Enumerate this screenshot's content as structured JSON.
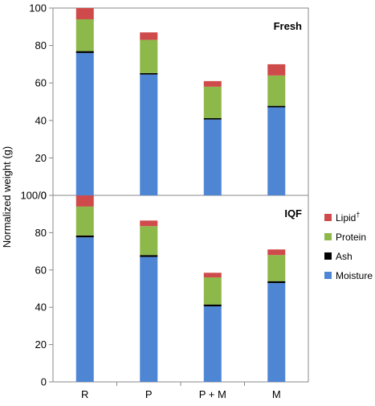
{
  "chart_data": {
    "type": "bar",
    "stacked": true,
    "ylabel": "Normalized weight (g)",
    "categories": [
      "R",
      "P",
      "P + M",
      "M"
    ],
    "stack_order": [
      "Moisture",
      "Ash",
      "Protein",
      "Lipid†"
    ],
    "colors": {
      "Moisture": "#4f86d4",
      "Ash": "#000000",
      "Protein": "#8db84a",
      "Lipid†": "#cf4b4b"
    },
    "legend": {
      "placement": "right",
      "order": [
        "Lipid†",
        "Protein",
        "Ash",
        "Moisture"
      ],
      "labels": {
        "Lipid": "Lipid",
        "dagger": "†",
        "Protein": "Protein",
        "Ash": "Ash",
        "Moisture": "Moisture"
      }
    },
    "grid": false,
    "panels": [
      {
        "label": "Fresh",
        "ylim": [
          0,
          100
        ],
        "yticks": [
          "0",
          "20",
          "40",
          "60",
          "80"
        ],
        "top_tick": "100",
        "series": [
          {
            "name": "Moisture",
            "values": [
              76,
              64.5,
              40.5,
              47
            ]
          },
          {
            "name": "Ash",
            "values": [
              1,
              0.8,
              0.7,
              0.8
            ]
          },
          {
            "name": "Protein",
            "values": [
              17,
              17.7,
              16.8,
              16.2
            ]
          },
          {
            "name": "Lipid†",
            "values": [
              6,
              4,
              3,
              6
            ]
          }
        ]
      },
      {
        "label": "IQF",
        "ylim": [
          0,
          100
        ],
        "yticks": [
          "0",
          "20",
          "40",
          "60",
          "80"
        ],
        "top_tick": "100/0",
        "series": [
          {
            "name": "Moisture",
            "values": [
              77.5,
              67,
              40.5,
              53
            ]
          },
          {
            "name": "Ash",
            "values": [
              1,
              1,
              1,
              1
            ]
          },
          {
            "name": "Protein",
            "values": [
              15.5,
              15.5,
              14.5,
              14
            ]
          },
          {
            "name": "Lipid†",
            "values": [
              6,
              3,
              2.5,
              3
            ]
          }
        ]
      }
    ]
  }
}
